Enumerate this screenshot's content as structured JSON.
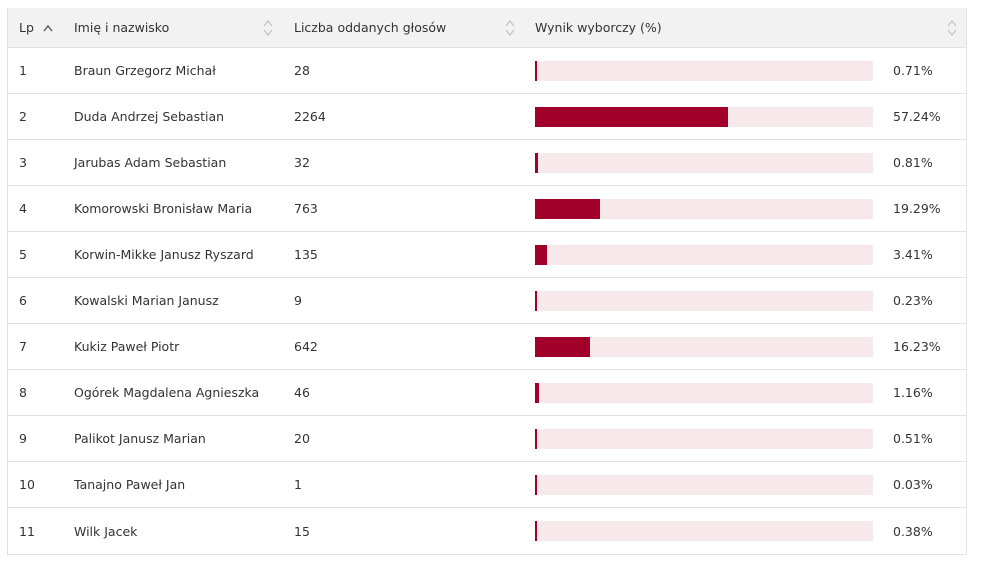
{
  "header": {
    "lp": "Lp",
    "name": "Imię i nazwisko",
    "votes": "Liczba oddanych głosów",
    "result": "Wynik wyborczy (%)"
  },
  "colors": {
    "bar": "#a1002b",
    "track": "#f7e8ec",
    "header_bg": "#f2f2f2"
  },
  "rows": [
    {
      "lp": "1",
      "name": "Braun Grzegorz Michał",
      "votes": "28",
      "pct": "0.71%",
      "value": 0.71
    },
    {
      "lp": "2",
      "name": "Duda Andrzej Sebastian",
      "votes": "2264",
      "pct": "57.24%",
      "value": 57.24
    },
    {
      "lp": "3",
      "name": "Jarubas Adam Sebastian",
      "votes": "32",
      "pct": "0.81%",
      "value": 0.81
    },
    {
      "lp": "4",
      "name": "Komorowski Bronisław Maria",
      "votes": "763",
      "pct": "19.29%",
      "value": 19.29
    },
    {
      "lp": "5",
      "name": "Korwin-Mikke Janusz Ryszard",
      "votes": "135",
      "pct": "3.41%",
      "value": 3.41
    },
    {
      "lp": "6",
      "name": "Kowalski Marian Janusz",
      "votes": "9",
      "pct": "0.23%",
      "value": 0.23
    },
    {
      "lp": "7",
      "name": "Kukiz Paweł Piotr",
      "votes": "642",
      "pct": "16.23%",
      "value": 16.23
    },
    {
      "lp": "8",
      "name": "Ogórek Magdalena Agnieszka",
      "votes": "46",
      "pct": "1.16%",
      "value": 1.16
    },
    {
      "lp": "9",
      "name": "Palikot Janusz Marian",
      "votes": "20",
      "pct": "0.51%",
      "value": 0.51
    },
    {
      "lp": "10",
      "name": "Tanajno Paweł Jan",
      "votes": "1",
      "pct": "0.03%",
      "value": 0.03
    },
    {
      "lp": "11",
      "name": "Wilk Jacek",
      "votes": "15",
      "pct": "0.38%",
      "value": 0.38
    }
  ]
}
